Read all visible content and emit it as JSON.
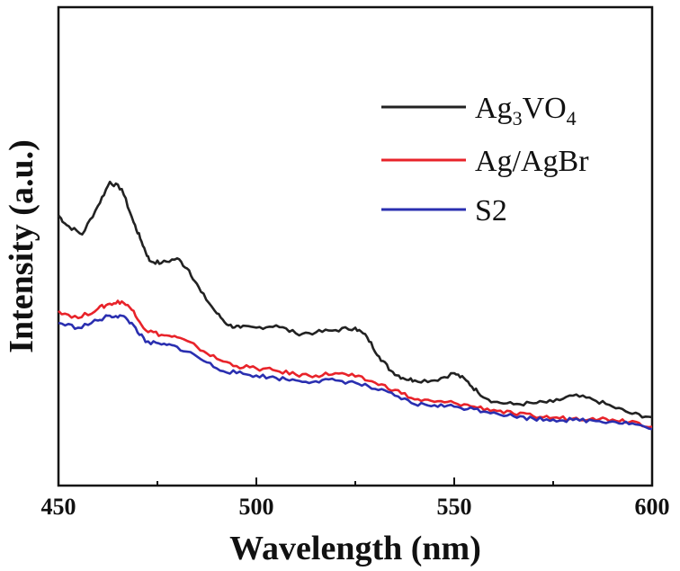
{
  "chart_data": {
    "type": "line",
    "title": "",
    "xlabel": "Wavelength (nm)",
    "ylabel": "Intensity (a.u.)",
    "xlim": [
      450,
      600
    ],
    "ylim": [
      0,
      100
    ],
    "xticks": [
      450,
      500,
      550,
      600
    ],
    "xtick_labels": [
      "450",
      "500",
      "550",
      "600"
    ],
    "yticks_shown": false,
    "legend_position": "top-right",
    "series": [
      {
        "name": "Ag3VO4",
        "color": "#222222",
        "x": [
          450,
          452,
          456,
          460,
          463,
          466,
          469,
          471,
          473,
          476,
          480,
          483,
          486,
          490,
          493,
          496,
          500,
          505,
          510,
          515,
          520,
          525,
          528,
          531,
          534,
          537,
          540,
          545,
          550,
          553,
          556,
          560,
          565,
          570,
          575,
          580,
          585,
          590,
          595,
          600
        ],
        "y": [
          56.5,
          54.5,
          52.5,
          58.5,
          63.5,
          62.0,
          55.0,
          51.0,
          47.0,
          46.5,
          47.5,
          45.0,
          40.5,
          36.0,
          33.5,
          33.0,
          33.0,
          33.5,
          31.8,
          32.0,
          32.5,
          33.0,
          31.0,
          27.0,
          24.0,
          22.5,
          22.0,
          22.0,
          23.5,
          22.0,
          19.5,
          17.5,
          17.0,
          17.2,
          17.5,
          18.8,
          18.0,
          16.5,
          15.0,
          14.3
        ]
      },
      {
        "name": "Ag/AgBr",
        "color": "#e8232a",
        "x": [
          450,
          455,
          460,
          463,
          466,
          469,
          472,
          476,
          480,
          485,
          490,
          495,
          500,
          505,
          510,
          515,
          520,
          525,
          530,
          535,
          540,
          545,
          550,
          555,
          560,
          565,
          570,
          575,
          580,
          585,
          590,
          595,
          600
        ],
        "y": [
          36.5,
          35.0,
          37.0,
          38.0,
          38.5,
          36.5,
          32.5,
          31.5,
          31.0,
          29.0,
          26.5,
          25.0,
          24.5,
          24.0,
          23.2,
          23.0,
          23.5,
          22.8,
          21.5,
          20.0,
          18.0,
          17.5,
          17.3,
          16.5,
          15.8,
          15.0,
          14.5,
          14.2,
          14.0,
          14.1,
          13.8,
          13.5,
          12.3
        ]
      },
      {
        "name": "S2",
        "color": "#2a2fb0",
        "x": [
          450,
          455,
          460,
          463,
          466,
          469,
          472,
          476,
          480,
          485,
          490,
          495,
          500,
          505,
          510,
          515,
          520,
          525,
          530,
          535,
          540,
          545,
          550,
          555,
          560,
          565,
          570,
          575,
          580,
          585,
          590,
          595,
          600
        ],
        "y": [
          34.0,
          33.0,
          34.5,
          35.5,
          35.5,
          33.5,
          30.0,
          29.5,
          29.0,
          27.0,
          24.5,
          23.5,
          23.0,
          22.5,
          22.0,
          21.8,
          22.0,
          21.5,
          20.2,
          18.8,
          17.0,
          16.8,
          16.5,
          16.0,
          15.3,
          14.5,
          14.0,
          13.8,
          13.7,
          13.6,
          13.4,
          13.0,
          11.8
        ]
      }
    ]
  }
}
